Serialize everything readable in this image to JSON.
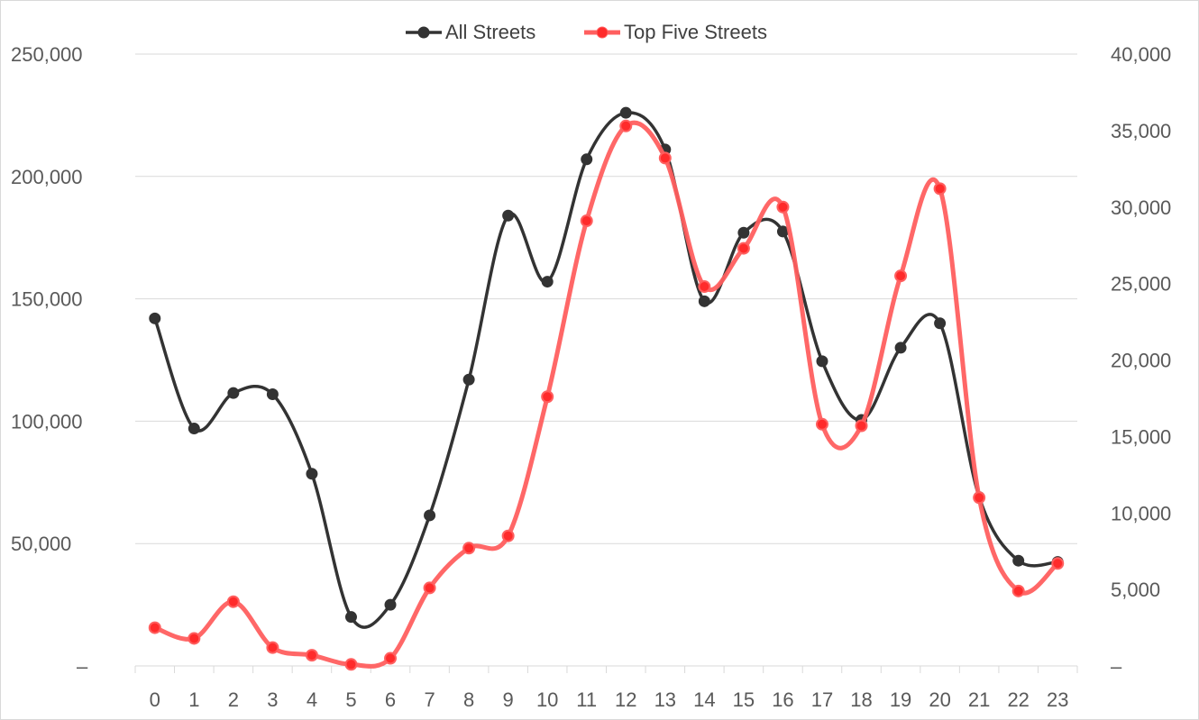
{
  "chart_data": {
    "type": "line",
    "smooth": true,
    "categories": [
      "0",
      "1",
      "2",
      "3",
      "4",
      "5",
      "6",
      "7",
      "8",
      "9",
      "10",
      "11",
      "12",
      "13",
      "14",
      "15",
      "16",
      "17",
      "18",
      "19",
      "20",
      "21",
      "22",
      "23"
    ],
    "series": [
      {
        "name": "All Streets",
        "axis": "left",
        "color": "#333333",
        "values": [
          142000,
          97000,
          111500,
          111000,
          78500,
          20000,
          25000,
          61500,
          117000,
          184000,
          157000,
          207000,
          226000,
          211000,
          149000,
          177000,
          177500,
          124500,
          100500,
          130000,
          140000,
          69000,
          43000,
          42500
        ]
      },
      {
        "name": "Top Five Streets",
        "axis": "right",
        "color": "#ff5f5f",
        "values": [
          2500,
          1800,
          4200,
          1200,
          700,
          100,
          500,
          5100,
          7700,
          8500,
          17600,
          29100,
          35300,
          33200,
          24800,
          27300,
          30000,
          15800,
          15700,
          25500,
          31200,
          11000,
          4900,
          6700
        ]
      }
    ],
    "left_axis": {
      "ylim": [
        0,
        250000
      ],
      "ticks": [
        "–",
        "50,000",
        "100,000",
        "150,000",
        "200,000",
        "250,000"
      ]
    },
    "right_axis": {
      "ylim": [
        0,
        40000
      ],
      "ticks": [
        "–",
        "5,000",
        "10,000",
        "15,000",
        "20,000",
        "25,000",
        "30,000",
        "35,000",
        "40,000"
      ]
    },
    "grid": true,
    "legend_position": "top-center",
    "title": "",
    "xlabel": "",
    "ylabel": ""
  }
}
